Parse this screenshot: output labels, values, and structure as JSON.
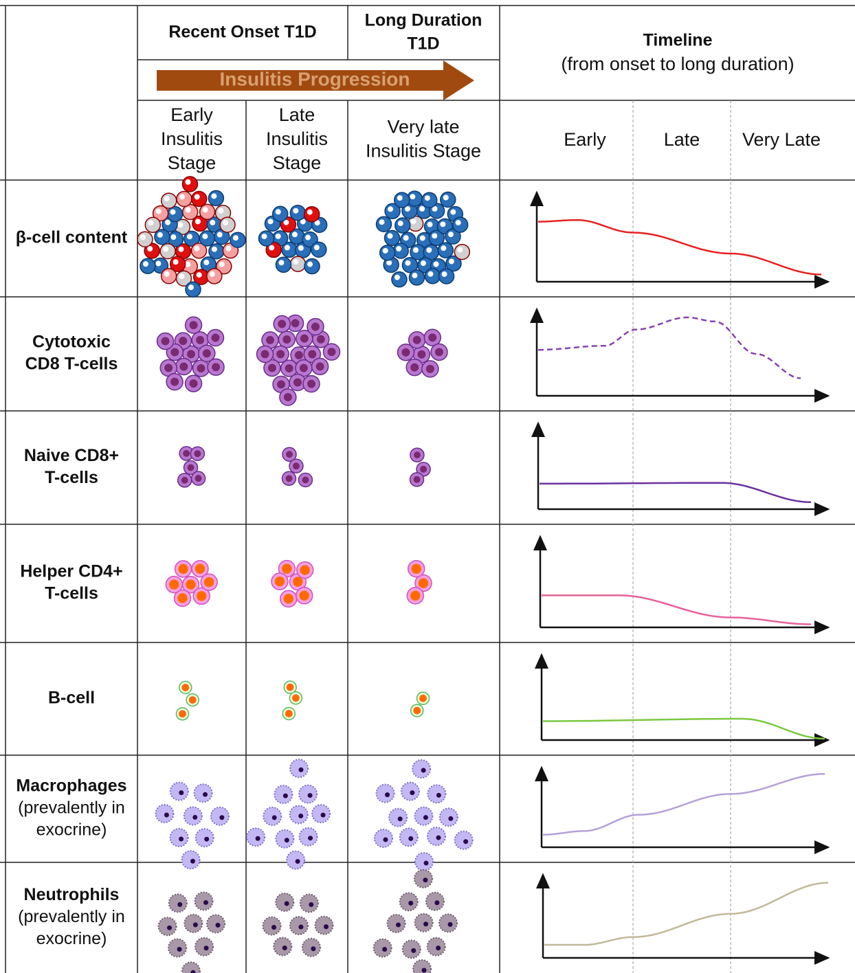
{
  "header": {
    "recent_onset": "Recent Onset T1D",
    "long_duration": [
      "Long Duration",
      "T1D"
    ],
    "progression": "Insulitis Progression",
    "timeline_title": "Timeline",
    "timeline_subtitle": "(from onset to long duration)"
  },
  "stages": [
    [
      "Early",
      "Insulitis",
      "Stage"
    ],
    [
      "Late",
      "Insulitis",
      "Stage"
    ],
    [
      "Very late",
      "Insulitis Stage"
    ]
  ],
  "phases": [
    "Early",
    "Late",
    "Very Late"
  ],
  "rows": [
    {
      "name": [
        "β-cell content"
      ]
    },
    {
      "name": [
        "Cytotoxic",
        "CD8 T-cells"
      ]
    },
    {
      "name": [
        "Naive CD8+",
        "T-cells"
      ]
    },
    {
      "name": [
        "Helper CD4+",
        "T-cells"
      ]
    },
    {
      "name": [
        "B-cell"
      ]
    },
    {
      "name": [
        "Macrophages"
      ],
      "note": [
        "(prevalently in",
        "exocrine)"
      ]
    },
    {
      "name": [
        "Neutrophils"
      ],
      "note": [
        "(prevalently in",
        "exocrine)"
      ]
    }
  ]
}
